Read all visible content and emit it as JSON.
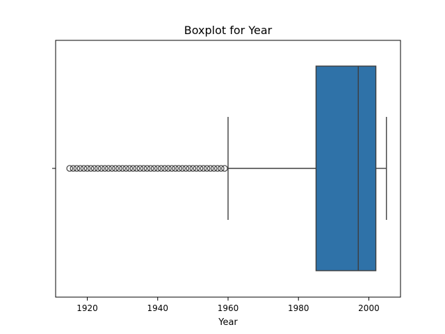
{
  "chart_data": {
    "type": "box",
    "orientation": "horizontal",
    "title": "Boxplot for Year",
    "xlabel": "Year",
    "ylabel": "",
    "xlim": [
      1911,
      2009
    ],
    "x_ticks": [
      1920,
      1940,
      1960,
      1980,
      2000
    ],
    "grid": false,
    "legend": "none",
    "box": {
      "whisker_low": 1960,
      "q1": 1985,
      "median": 1997,
      "q3": 2002,
      "whisker_high": 2005
    },
    "outliers": [
      1915,
      1916,
      1917,
      1918,
      1919,
      1920,
      1921,
      1922,
      1923,
      1924,
      1925,
      1926,
      1927,
      1928,
      1929,
      1930,
      1931,
      1932,
      1933,
      1934,
      1935,
      1936,
      1937,
      1938,
      1939,
      1940,
      1941,
      1942,
      1943,
      1944,
      1945,
      1946,
      1947,
      1948,
      1949,
      1950,
      1951,
      1952,
      1953,
      1954,
      1955,
      1956,
      1957,
      1958,
      1959
    ],
    "colors": {
      "box_fill": "#2f72a8",
      "lines": "#3d3d3d",
      "axes": "#000000"
    }
  }
}
